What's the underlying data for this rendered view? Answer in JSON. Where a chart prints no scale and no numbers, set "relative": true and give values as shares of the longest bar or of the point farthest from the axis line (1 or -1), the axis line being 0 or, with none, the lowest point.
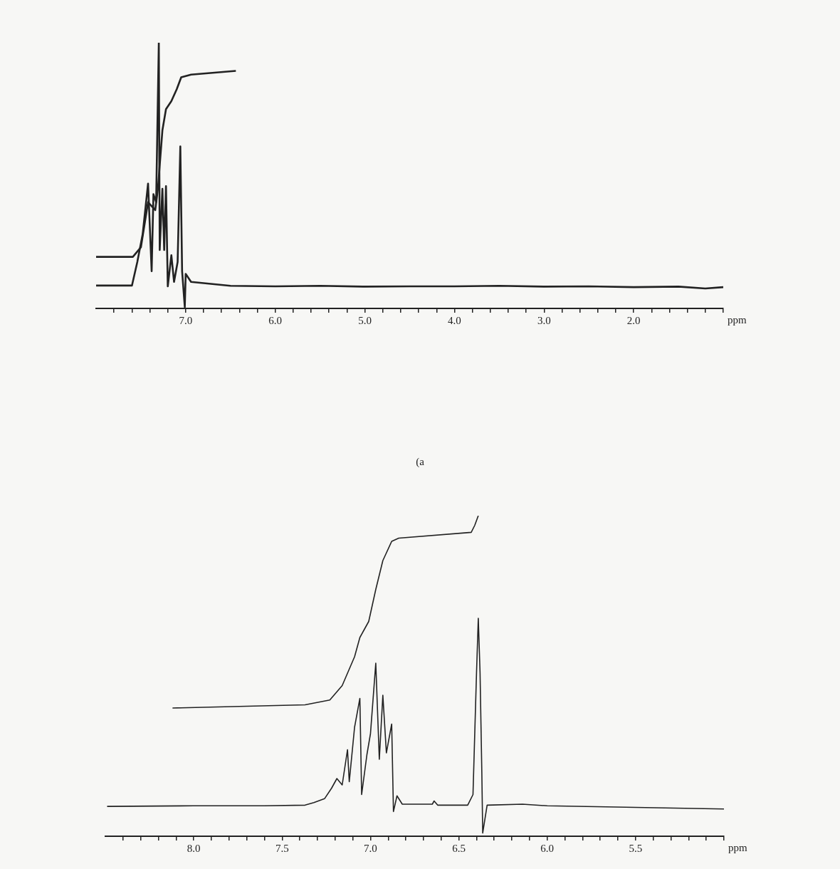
{
  "chart_data": [
    {
      "type": "line",
      "relative": true,
      "xlabel": "ppm",
      "annotations": [
        "(a"
      ],
      "xlim": [
        8.0,
        1.0
      ],
      "xticks": [
        {
          "value": 7.8,
          "label": null
        },
        {
          "value": 7.6,
          "label": null
        },
        {
          "value": 7.4,
          "label": null
        },
        {
          "value": 7.2,
          "label": null
        },
        {
          "value": 7.0,
          "label": "7.0"
        },
        {
          "value": 6.8,
          "label": null
        },
        {
          "value": 6.6,
          "label": null
        },
        {
          "value": 6.4,
          "label": null
        },
        {
          "value": 6.2,
          "label": null
        },
        {
          "value": 6.0,
          "label": "6.0"
        },
        {
          "value": 5.8,
          "label": null
        },
        {
          "value": 5.6,
          "label": null
        },
        {
          "value": 5.4,
          "label": null
        },
        {
          "value": 5.2,
          "label": null
        },
        {
          "value": 5.0,
          "label": "5.0"
        },
        {
          "value": 4.8,
          "label": null
        },
        {
          "value": 4.6,
          "label": null
        },
        {
          "value": 4.4,
          "label": null
        },
        {
          "value": 4.2,
          "label": null
        },
        {
          "value": 4.0,
          "label": "4.0"
        },
        {
          "value": 3.8,
          "label": null
        },
        {
          "value": 3.6,
          "label": null
        },
        {
          "value": 3.4,
          "label": null
        },
        {
          "value": 3.2,
          "label": null
        },
        {
          "value": 3.0,
          "label": "3.0"
        },
        {
          "value": 2.8,
          "label": null
        },
        {
          "value": 2.6,
          "label": null
        },
        {
          "value": 2.4,
          "label": null
        },
        {
          "value": 2.2,
          "label": null
        },
        {
          "value": 2.0,
          "label": "2.0"
        },
        {
          "value": 1.8,
          "label": null
        },
        {
          "value": 1.6,
          "label": null
        },
        {
          "value": 1.4,
          "label": null
        },
        {
          "value": 1.2,
          "label": null
        },
        {
          "value": 1.0,
          "label": null
        }
      ],
      "series": [
        {
          "color": "#222222",
          "x": [
            8.0,
            7.6,
            7.54,
            7.48,
            7.42,
            7.38,
            7.36,
            7.33,
            7.3,
            7.29,
            7.26,
            7.24,
            7.22,
            7.2,
            7.16,
            7.13,
            7.09,
            7.06,
            7.04,
            7.01,
            7.0,
            6.94,
            6.5,
            6.0,
            5.5,
            5.0,
            4.5,
            4.0,
            3.5,
            3.0,
            2.5,
            2.0,
            1.5,
            1.2,
            1.0
          ],
          "values": [
            0.086,
            0.086,
            0.175,
            0.28,
            0.47,
            0.14,
            0.43,
            0.4,
            1.0,
            0.22,
            0.45,
            0.22,
            0.46,
            0.083,
            0.2,
            0.1,
            0.175,
            0.61,
            0.14,
            0.005,
            0.13,
            0.1,
            0.085,
            0.083,
            0.085,
            0.082,
            0.083,
            0.083,
            0.085,
            0.082,
            0.083,
            0.08,
            0.082,
            0.075,
            0.08
          ]
        },
        {
          "color": "#222222",
          "x": [
            8.0,
            7.59,
            7.5,
            7.42,
            7.34,
            7.31,
            7.26,
            7.22,
            7.16,
            7.1,
            7.05,
            6.94,
            6.44
          ],
          "values": [
            0.194,
            0.194,
            0.23,
            0.4,
            0.37,
            0.45,
            0.67,
            0.75,
            0.78,
            0.825,
            0.87,
            0.88,
            0.894
          ]
        }
      ]
    },
    {
      "type": "line",
      "relative": true,
      "xlabel": "ppm",
      "xlim": [
        8.5,
        5.0
      ],
      "xticks": [
        {
          "value": 8.4,
          "label": null
        },
        {
          "value": 8.3,
          "label": null
        },
        {
          "value": 8.2,
          "label": null
        },
        {
          "value": 8.1,
          "label": null
        },
        {
          "value": 8.0,
          "label": "8.0"
        },
        {
          "value": 7.9,
          "label": null
        },
        {
          "value": 7.8,
          "label": null
        },
        {
          "value": 7.7,
          "label": null
        },
        {
          "value": 7.6,
          "label": null
        },
        {
          "value": 7.5,
          "label": "7.5"
        },
        {
          "value": 7.4,
          "label": null
        },
        {
          "value": 7.3,
          "label": null
        },
        {
          "value": 7.2,
          "label": null
        },
        {
          "value": 7.1,
          "label": null
        },
        {
          "value": 7.0,
          "label": "7.0"
        },
        {
          "value": 6.9,
          "label": null
        },
        {
          "value": 6.8,
          "label": null
        },
        {
          "value": 6.7,
          "label": null
        },
        {
          "value": 6.6,
          "label": null
        },
        {
          "value": 6.5,
          "label": "6.5"
        },
        {
          "value": 6.4,
          "label": null
        },
        {
          "value": 6.3,
          "label": null
        },
        {
          "value": 6.2,
          "label": null
        },
        {
          "value": 6.1,
          "label": null
        },
        {
          "value": 6.0,
          "label": "6.0"
        },
        {
          "value": 5.9,
          "label": null
        },
        {
          "value": 5.8,
          "label": null
        },
        {
          "value": 5.7,
          "label": null
        },
        {
          "value": 5.6,
          "label": null
        },
        {
          "value": 5.5,
          "label": "5.5"
        },
        {
          "value": 5.4,
          "label": null
        },
        {
          "value": 5.3,
          "label": null
        },
        {
          "value": 5.2,
          "label": null
        },
        {
          "value": 5.1,
          "label": null
        },
        {
          "value": 5.0,
          "label": null
        }
      ],
      "series": [
        {
          "color": "#222222",
          "x": [
            8.49,
            8.0,
            7.6,
            7.37,
            7.32,
            7.26,
            7.22,
            7.19,
            7.16,
            7.13,
            7.12,
            7.09,
            7.06,
            7.05,
            7.02,
            7.0,
            6.97,
            6.95,
            6.93,
            6.91,
            6.88,
            6.87,
            6.85,
            6.82,
            6.65,
            6.64,
            6.62,
            6.45,
            6.42,
            6.4,
            6.39,
            6.38,
            6.37,
            6.365,
            6.34,
            6.14,
            6.0,
            5.5,
            5.0
          ],
          "values": [
            0.093,
            0.095,
            0.095,
            0.097,
            0.105,
            0.117,
            0.15,
            0.18,
            0.16,
            0.27,
            0.17,
            0.34,
            0.43,
            0.13,
            0.255,
            0.32,
            0.54,
            0.24,
            0.44,
            0.26,
            0.35,
            0.077,
            0.126,
            0.1,
            0.1,
            0.11,
            0.097,
            0.097,
            0.13,
            0.51,
            0.68,
            0.51,
            0.2,
            0.01,
            0.097,
            0.1,
            0.095,
            0.09,
            0.085
          ]
        },
        {
          "color": "#222222",
          "x": [
            8.12,
            7.37,
            7.23,
            7.16,
            7.09,
            7.06,
            7.01,
            6.97,
            6.93,
            6.88,
            6.84,
            6.43,
            6.41,
            6.39
          ],
          "values": [
            0.4,
            0.41,
            0.425,
            0.47,
            0.56,
            0.62,
            0.67,
            0.77,
            0.86,
            0.92,
            0.93,
            0.948,
            0.97,
            1.0
          ]
        }
      ]
    }
  ]
}
